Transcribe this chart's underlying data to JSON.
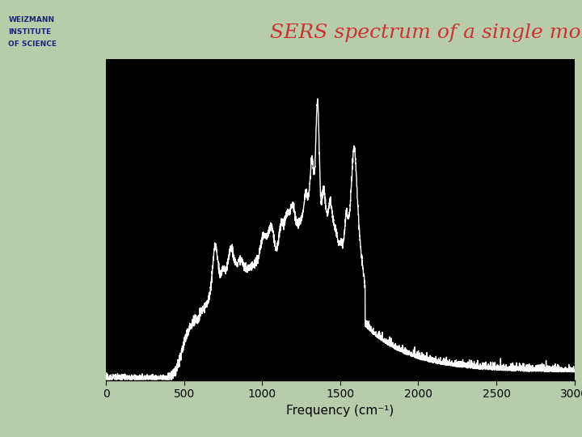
{
  "title": "SERS spectrum of a single molecule",
  "title_color": "#cc3333",
  "title_fontsize": 18,
  "xlabel": "Frequency (cm⁻¹)",
  "xlabel_fontsize": 11,
  "xlim": [
    0,
    3000
  ],
  "ylim": [
    0,
    1.05
  ],
  "xticks": [
    0,
    500,
    1000,
    1500,
    2000,
    2500,
    3000
  ],
  "plot_bg": "#000000",
  "fig_bg": "#b8ccaa",
  "line_color": "#ffffff",
  "line_width": 1.0
}
